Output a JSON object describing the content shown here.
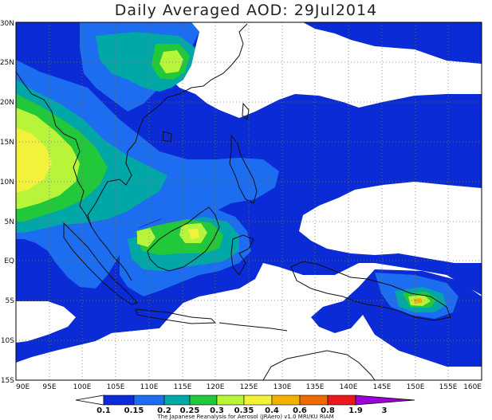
{
  "title": "Daily Averaged AOD: 29Jul2014",
  "map": {
    "lat_labels": [
      "30N",
      "25N",
      "20N",
      "15N",
      "10N",
      "5N",
      "EQ",
      "5S",
      "10S",
      "15S"
    ],
    "lon_labels": [
      "90E",
      "95E",
      "100E",
      "105E",
      "110E",
      "115E",
      "120E",
      "125E",
      "130E",
      "135E",
      "140E",
      "145E",
      "150E",
      "155E",
      "160E"
    ],
    "lat_values": [
      30,
      25,
      20,
      15,
      10,
      5,
      0,
      -5,
      -10,
      -15
    ],
    "lon_values": [
      90,
      95,
      100,
      105,
      110,
      115,
      120,
      125,
      130,
      135,
      140,
      145,
      150,
      155,
      160
    ],
    "grid": true
  },
  "colorbar": {
    "levels": [
      "0.1",
      "0.15",
      "0.2",
      "0.25",
      "0.3",
      "0.35",
      "0.4",
      "0.6",
      "0.8",
      "1.9",
      "3"
    ],
    "colors": [
      "#ffffff",
      "#0a2bd6",
      "#1c6df0",
      "#00a7a7",
      "#21c93a",
      "#b8f53a",
      "#f2f23a",
      "#f2b100",
      "#ee6a00",
      "#e8191c",
      "#9b00d8"
    ]
  },
  "credit": "The Japanese Reanalysis for Aerosol (JRAero) v1.0 MRI/KU RIAM"
}
